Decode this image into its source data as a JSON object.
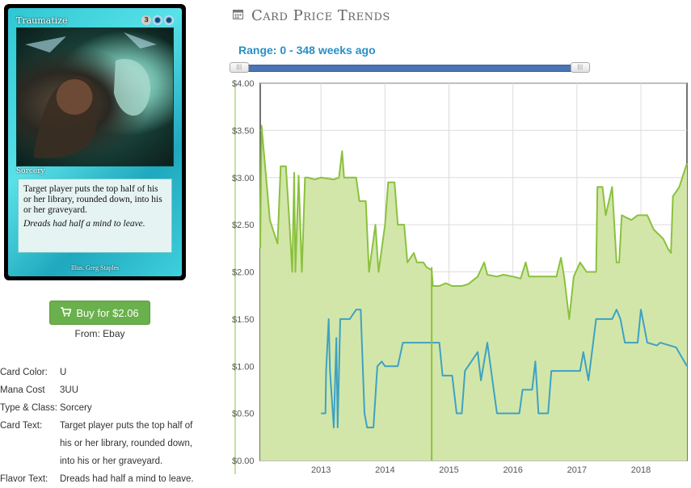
{
  "card": {
    "name": "Traumatize",
    "mana_cost_symbols": [
      "3",
      "U",
      "U"
    ],
    "type_line": "Sorcery",
    "rules_text": "Target player puts the top half of his or her library, rounded down, into his or her graveyard.",
    "flavor_text": "Dreads had half a mind to leave.",
    "illustrator": "Illus. Greg Staples"
  },
  "buy": {
    "label": "Buy for $2.06",
    "icon": "shopping-cart-icon",
    "from": "From: Ebay",
    "color": "#6ab04c"
  },
  "details": [
    {
      "label": "Card Color:",
      "value": "U"
    },
    {
      "label": "Mana Cost",
      "value": "3UU"
    },
    {
      "label": "Type & Class:",
      "value": "Sorcery"
    },
    {
      "label": "Card Text:",
      "value": "Target player puts the top half of his or her library, rounded down, into his or her graveyard."
    },
    {
      "label": "Flavor Text:",
      "value": "Dreads had half a mind to leave."
    }
  ],
  "heading": {
    "title": "Card Price Trends",
    "icon": "calendar-icon"
  },
  "range": {
    "label": "Range: 0 - 348 weeks ago",
    "start_weeks": 0,
    "end_weeks": 348
  },
  "chart_data": {
    "type": "line",
    "xlabel": "",
    "ylabel": "",
    "ylim": [
      0,
      4
    ],
    "xlim": [
      2012.05,
      2018.72
    ],
    "yticks": [
      "$0.00",
      "$0.50",
      "$1.00",
      "$1.50",
      "$2.00",
      "$2.50",
      "$3.00",
      "$3.50",
      "$4.00"
    ],
    "xticks": [
      "2013",
      "2014",
      "2015",
      "2016",
      "2017",
      "2018"
    ],
    "grid": true,
    "colors": {
      "green": "#8ac13e",
      "green_fill": "#d3e6a9",
      "blue": "#3ea2c2"
    },
    "marker_year": 2014.73,
    "series": [
      {
        "color": "green",
        "area": true,
        "points": [
          [
            2012.05,
            2.25
          ],
          [
            2012.07,
            3.55
          ],
          [
            2012.2,
            2.55
          ],
          [
            2012.32,
            2.3
          ],
          [
            2012.37,
            3.12
          ],
          [
            2012.45,
            3.12
          ],
          [
            2012.5,
            2.6
          ],
          [
            2012.55,
            2.0
          ],
          [
            2012.58,
            3.05
          ],
          [
            2012.6,
            2.0
          ],
          [
            2012.65,
            3.02
          ],
          [
            2012.7,
            2.0
          ],
          [
            2012.75,
            3.0
          ],
          [
            2012.8,
            3.0
          ],
          [
            2012.9,
            2.98
          ],
          [
            2013.0,
            3.0
          ],
          [
            2013.2,
            2.98
          ],
          [
            2013.28,
            3.0
          ],
          [
            2013.33,
            3.28
          ],
          [
            2013.36,
            3.0
          ],
          [
            2013.55,
            3.0
          ],
          [
            2013.6,
            2.75
          ],
          [
            2013.7,
            2.75
          ],
          [
            2013.75,
            2.0
          ],
          [
            2013.85,
            2.5
          ],
          [
            2013.9,
            2.0
          ],
          [
            2014.0,
            2.5
          ],
          [
            2014.05,
            2.95
          ],
          [
            2014.15,
            2.95
          ],
          [
            2014.2,
            2.5
          ],
          [
            2014.3,
            2.5
          ],
          [
            2014.35,
            2.1
          ],
          [
            2014.45,
            2.2
          ],
          [
            2014.5,
            2.1
          ],
          [
            2014.6,
            2.1
          ],
          [
            2014.65,
            2.05
          ],
          [
            2014.73,
            2.02
          ],
          [
            2014.75,
            1.85
          ],
          [
            2014.85,
            1.85
          ],
          [
            2014.95,
            1.88
          ],
          [
            2015.05,
            1.85
          ],
          [
            2015.2,
            1.85
          ],
          [
            2015.3,
            1.87
          ],
          [
            2015.45,
            1.95
          ],
          [
            2015.55,
            2.1
          ],
          [
            2015.6,
            1.97
          ],
          [
            2015.75,
            1.95
          ],
          [
            2015.85,
            1.97
          ],
          [
            2016.0,
            1.95
          ],
          [
            2016.12,
            1.93
          ],
          [
            2016.2,
            2.1
          ],
          [
            2016.25,
            1.95
          ],
          [
            2016.35,
            1.95
          ],
          [
            2016.45,
            1.95
          ],
          [
            2016.55,
            1.95
          ],
          [
            2016.68,
            1.95
          ],
          [
            2016.75,
            2.15
          ],
          [
            2016.8,
            1.95
          ],
          [
            2016.88,
            1.5
          ],
          [
            2016.95,
            1.95
          ],
          [
            2017.05,
            2.1
          ],
          [
            2017.1,
            2.05
          ],
          [
            2017.15,
            2.0
          ],
          [
            2017.3,
            2.0
          ],
          [
            2017.32,
            2.9
          ],
          [
            2017.4,
            2.9
          ],
          [
            2017.45,
            2.6
          ],
          [
            2017.55,
            2.9
          ],
          [
            2017.62,
            2.1
          ],
          [
            2017.66,
            2.1
          ],
          [
            2017.7,
            2.6
          ],
          [
            2017.85,
            2.55
          ],
          [
            2017.95,
            2.6
          ],
          [
            2018.1,
            2.6
          ],
          [
            2018.2,
            2.45
          ],
          [
            2018.35,
            2.35
          ],
          [
            2018.42,
            2.25
          ],
          [
            2018.47,
            2.2
          ],
          [
            2018.5,
            2.8
          ],
          [
            2018.6,
            2.9
          ],
          [
            2018.72,
            3.15
          ]
        ]
      },
      {
        "color": "blue",
        "area": false,
        "points": [
          [
            2013.0,
            0.5
          ],
          [
            2013.07,
            0.5
          ],
          [
            2013.08,
            0.95
          ],
          [
            2013.12,
            1.5
          ],
          [
            2013.14,
            0.95
          ],
          [
            2013.2,
            0.35
          ],
          [
            2013.24,
            1.3
          ],
          [
            2013.26,
            0.35
          ],
          [
            2013.3,
            1.5
          ],
          [
            2013.45,
            1.5
          ],
          [
            2013.55,
            1.6
          ],
          [
            2013.62,
            1.6
          ],
          [
            2013.68,
            0.5
          ],
          [
            2013.72,
            0.35
          ],
          [
            2013.82,
            0.35
          ],
          [
            2013.88,
            1.0
          ],
          [
            2013.95,
            1.05
          ],
          [
            2014.0,
            1.0
          ],
          [
            2014.2,
            1.0
          ],
          [
            2014.28,
            1.25
          ],
          [
            2014.6,
            1.25
          ],
          [
            2014.85,
            1.25
          ],
          [
            2014.9,
            0.9
          ],
          [
            2015.05,
            0.9
          ],
          [
            2015.12,
            0.5
          ],
          [
            2015.2,
            0.5
          ],
          [
            2015.25,
            0.95
          ],
          [
            2015.35,
            1.05
          ],
          [
            2015.45,
            1.15
          ],
          [
            2015.5,
            0.85
          ],
          [
            2015.6,
            1.25
          ],
          [
            2015.75,
            0.5
          ],
          [
            2016.1,
            0.5
          ],
          [
            2016.15,
            0.75
          ],
          [
            2016.3,
            0.75
          ],
          [
            2016.35,
            1.05
          ],
          [
            2016.4,
            0.5
          ],
          [
            2016.55,
            0.5
          ],
          [
            2016.6,
            0.95
          ],
          [
            2016.9,
            0.95
          ],
          [
            2017.05,
            0.95
          ],
          [
            2017.1,
            1.15
          ],
          [
            2017.18,
            0.85
          ],
          [
            2017.3,
            1.5
          ],
          [
            2017.55,
            1.5
          ],
          [
            2017.62,
            1.6
          ],
          [
            2017.68,
            1.5
          ],
          [
            2017.75,
            1.25
          ],
          [
            2017.95,
            1.25
          ],
          [
            2018.0,
            1.6
          ],
          [
            2018.1,
            1.25
          ],
          [
            2018.25,
            1.22
          ],
          [
            2018.3,
            1.25
          ],
          [
            2018.45,
            1.22
          ],
          [
            2018.55,
            1.2
          ],
          [
            2018.72,
            1.0
          ]
        ]
      }
    ]
  }
}
